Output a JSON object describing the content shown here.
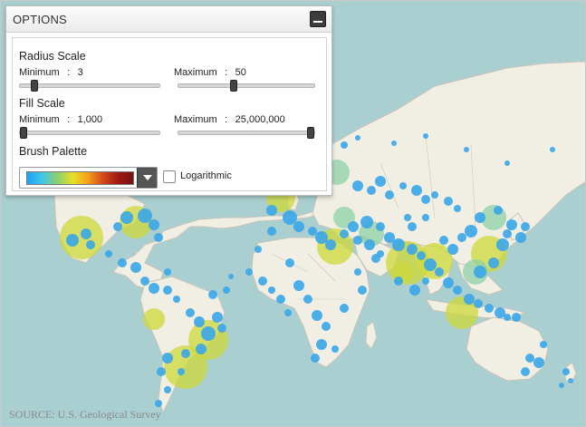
{
  "panel": {
    "title": "OPTIONS",
    "minimize_icon": "minimize-icon",
    "radius_scale": {
      "heading": "Radius Scale",
      "minimum_label": "Minimum",
      "minimum_value": "3",
      "maximum_label": "Maximum",
      "maximum_value": "50",
      "min_slider_fraction": 0.08,
      "max_slider_fraction": 0.4
    },
    "fill_scale": {
      "heading": "Fill Scale",
      "minimum_label": "Minimum",
      "minimum_value": "1,000",
      "maximum_label": "Maximum",
      "maximum_value": "25,000,000",
      "min_slider_fraction": 0.0,
      "max_slider_fraction": 1.0
    },
    "brush_palette": {
      "heading": "Brush Palette",
      "colors": [
        "#1fa2f0",
        "#3fc6e8",
        "#8fd06a",
        "#e8e028",
        "#f4a21a",
        "#d8491c",
        "#9c1a12",
        "#7a0f10"
      ],
      "dropdown_icon": "chevron-down-icon"
    },
    "logarithmic": {
      "label": "Logarithmic",
      "checked": false
    }
  },
  "colon": ":",
  "map": {
    "ocean_color": "#aacfd0",
    "land_color": "#f1eee4",
    "border_color": "#c9c3b8",
    "bubble_blue": "#3aa6e8",
    "bubble_yellow": "#cdd83a",
    "bubble_green": "#8ed1a8"
  },
  "source_text": "SOURCE: U.S. Geological Survey"
}
